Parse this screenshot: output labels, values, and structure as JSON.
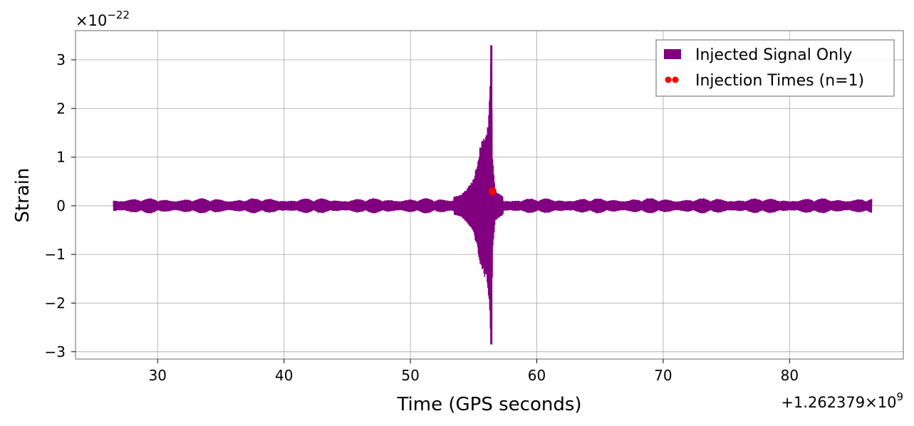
{
  "chart_data": {
    "type": "line",
    "xlabel": "Time (GPS seconds)",
    "ylabel": "Strain",
    "x_offset_label": "+1.262379×10",
    "x_offset_exp": "9",
    "y_scale_label": "×10",
    "y_scale_exp": "−22",
    "xlim": [
      23.5,
      89
    ],
    "ylim": [
      -3.15,
      3.6
    ],
    "x_ticks": [
      30,
      40,
      50,
      60,
      70,
      80
    ],
    "x_tick_labels": [
      "30",
      "40",
      "50",
      "60",
      "70",
      "80"
    ],
    "y_ticks": [
      -3,
      -2,
      -1,
      0,
      1,
      2,
      3
    ],
    "y_tick_labels": [
      "−3",
      "−2",
      "−1",
      "0",
      "1",
      "2",
      "3"
    ],
    "grid": true,
    "legend_position": "top-right",
    "series": [
      {
        "name": "Injected Signal Only",
        "color": "#800080",
        "x_range": [
          26.5,
          86.5
        ],
        "background_amplitude": 0.15,
        "envelope": [
          {
            "x": 53.0,
            "y": 0.15
          },
          {
            "x": 54.0,
            "y": 0.22
          },
          {
            "x": 54.5,
            "y": 0.35
          },
          {
            "x": 55.0,
            "y": 0.55
          },
          {
            "x": 55.3,
            "y": 0.9
          },
          {
            "x": 55.5,
            "y": 1.2
          },
          {
            "x": 55.8,
            "y": 1.45
          },
          {
            "x": 56.0,
            "y": 1.5
          },
          {
            "x": 56.2,
            "y": 1.9
          },
          {
            "x": 56.4,
            "y": 3.3
          },
          {
            "x": 56.5,
            "y": 1.0
          },
          {
            "x": 56.7,
            "y": 0.3
          },
          {
            "x": 57.5,
            "y": 0.15
          }
        ],
        "peak": {
          "x": 56.4,
          "max": 3.3,
          "min": -2.85
        }
      },
      {
        "name": "Injection Times (n=1)",
        "type": "scatter",
        "color": "#ff0000",
        "points": [
          {
            "x": 56.5,
            "y": 0.3
          }
        ]
      }
    ]
  }
}
